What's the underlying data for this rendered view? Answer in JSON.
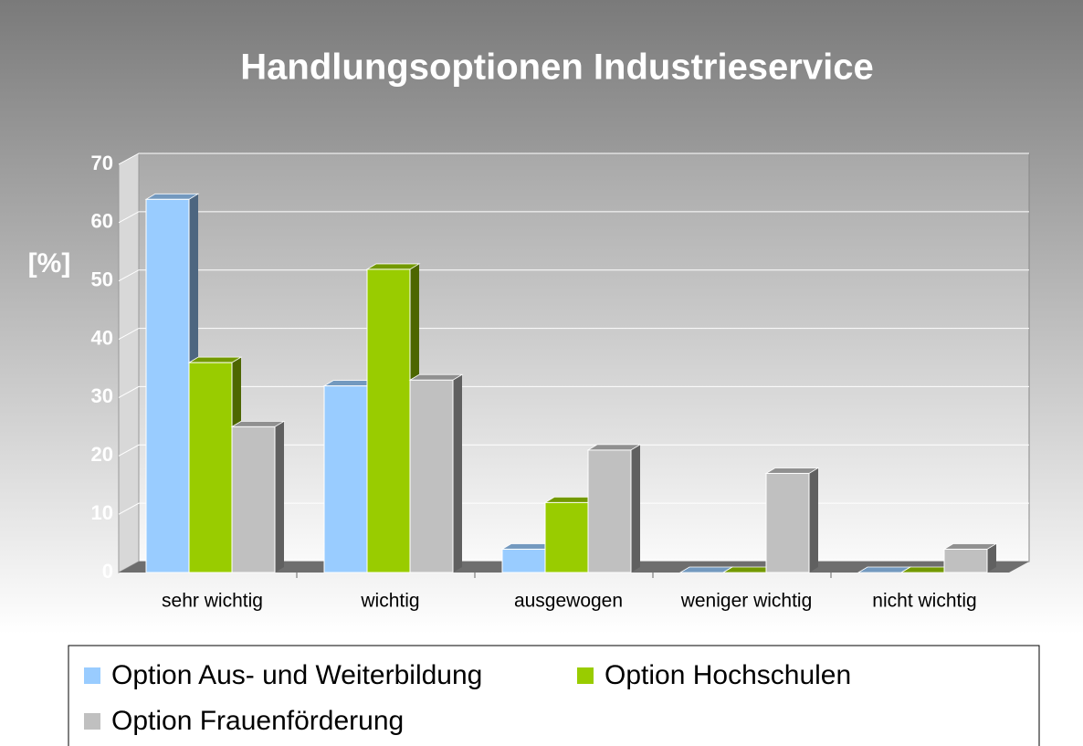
{
  "chart_data": {
    "type": "bar3d",
    "title": "Handlungsoptionen Industrieservice",
    "y_label": "[%]",
    "categories": [
      "sehr wichtig",
      "wichtig",
      "ausgewogen",
      "weniger wichtig",
      "nicht wichtig"
    ],
    "series": [
      {
        "name": "Option Aus- und Weiterbildung",
        "color": "#99ccff",
        "values": [
          64,
          32,
          4,
          0,
          0
        ]
      },
      {
        "name": "Option Hochschulen",
        "color": "#99cc00",
        "values": [
          36,
          52,
          12,
          0,
          0
        ]
      },
      {
        "name": "Option Frauenförderung",
        "color": "#c0c0c0",
        "values": [
          25,
          33,
          21,
          17,
          4
        ]
      }
    ],
    "ylim": [
      0,
      70
    ],
    "yticks": [
      0,
      10,
      20,
      30,
      40,
      50,
      60,
      70
    ],
    "grid": true,
    "legend": "bottom"
  }
}
